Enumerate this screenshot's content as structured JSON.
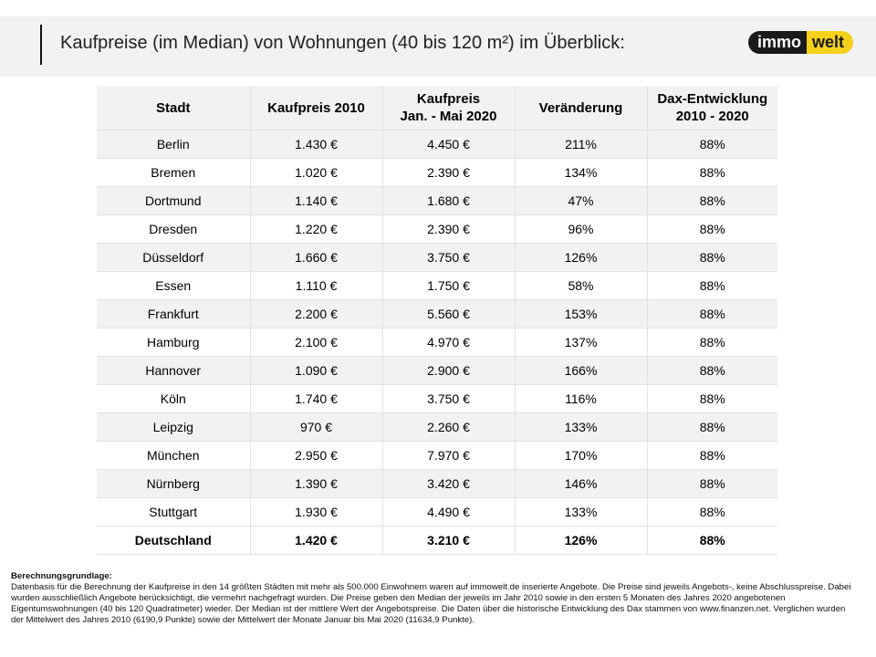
{
  "header": {
    "title": "Kaufpreise (im Median) von Wohnungen (40 bis 120 m²) im Überblick:",
    "logo_part1": "immo",
    "logo_part2": "welt"
  },
  "table": {
    "columns": [
      "Stadt",
      "Kaufpreis 2010",
      "Kaufpreis\nJan. - Mai 2020",
      "Veränderung",
      "Dax-Entwicklung\n2010 - 2020"
    ],
    "rows": [
      [
        "Berlin",
        "1.430 €",
        "4.450 €",
        "211%",
        "88%"
      ],
      [
        "Bremen",
        "1.020 €",
        "2.390 €",
        "134%",
        "88%"
      ],
      [
        "Dortmund",
        "1.140 €",
        "1.680 €",
        "47%",
        "88%"
      ],
      [
        "Dresden",
        "1.220 €",
        "2.390 €",
        "96%",
        "88%"
      ],
      [
        "Düsseldorf",
        "1.660 €",
        "3.750 €",
        "126%",
        "88%"
      ],
      [
        "Essen",
        "1.110 €",
        "1.750 €",
        "58%",
        "88%"
      ],
      [
        "Frankfurt",
        "2.200 €",
        "5.560 €",
        "153%",
        "88%"
      ],
      [
        "Hamburg",
        "2.100 €",
        "4.970 €",
        "137%",
        "88%"
      ],
      [
        "Hannover",
        "1.090 €",
        "2.900 €",
        "166%",
        "88%"
      ],
      [
        "Köln",
        "1.740 €",
        "3.750 €",
        "116%",
        "88%"
      ],
      [
        "Leipzig",
        "970 €",
        "2.260 €",
        "133%",
        "88%"
      ],
      [
        "München",
        "2.950 €",
        "7.970 €",
        "170%",
        "88%"
      ],
      [
        "Nürnberg",
        "1.390 €",
        "3.420 €",
        "146%",
        "88%"
      ],
      [
        "Stuttgart",
        "1.930 €",
        "4.490 €",
        "133%",
        "88%"
      ]
    ],
    "total": [
      "Deutschland",
      "1.420 €",
      "3.210 €",
      "126%",
      "88%"
    ]
  },
  "footnote": {
    "heading": "Berechnungsgrundlage:",
    "text": "Datenbasis für die Berechnung der Kaufpreise in den 14 größten Städten mit mehr als 500.000 Einwohnern waren auf immowelt.de inserierte Angebote. Die Preise sind jeweils Angebots-, keine Abschlusspreise. Dabei wurden ausschließlich Angebote berücksichtigt, die vermehrt nachgefragt wurden. Die Preise geben den Median der jeweils im Jahr 2010 sowie in den ersten 5 Monaten des Jahres 2020 angebotenen Eigentumswohnungen (40 bis 120 Quadratmeter) wieder. Der Median ist der mittlere Wert der Angebotspreise. Die Daten über die historische Entwicklung des Dax stammen von www.finanzen.net. Verglichen wurden der Mittelwert des Jahres 2010 (6190,9 Punkte) sowie der Mittelwert der Monate Januar bis Mai 2020 (11634,9 Punkte)."
  }
}
